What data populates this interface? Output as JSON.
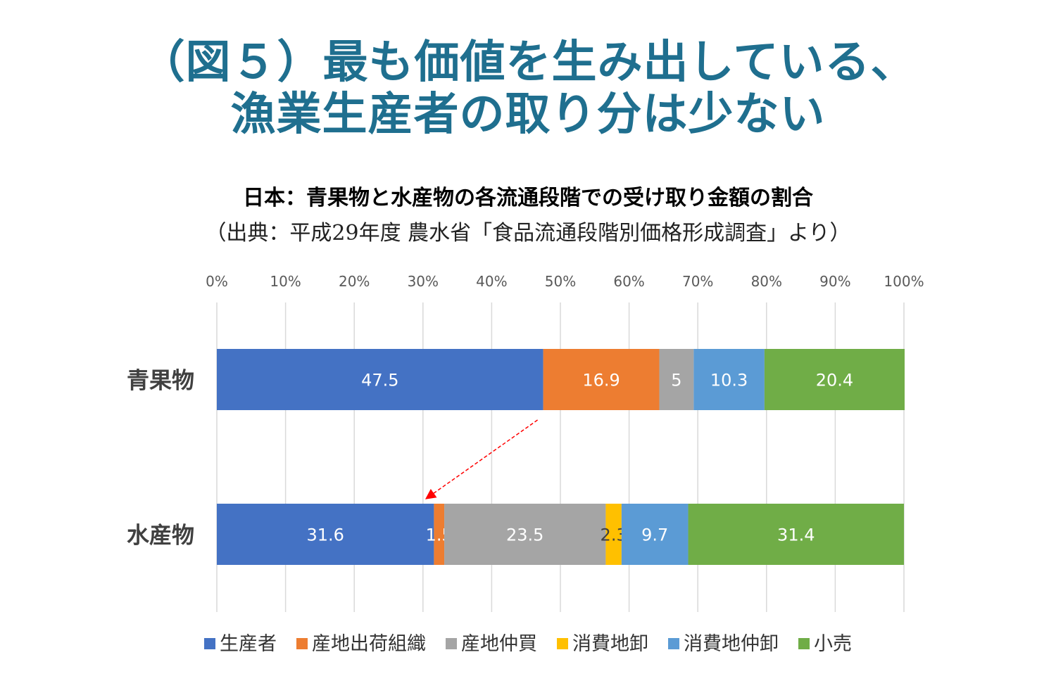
{
  "header": {
    "title_line1": "（図５）最も価値を生み出している、",
    "title_line2": "漁業生産者の取り分は少ない"
  },
  "chart_data": {
    "type": "bar",
    "orientation": "horizontal",
    "stacked": true,
    "title": "日本：青果物と水産物の各流通段階での受け取り金額の割合",
    "subtitle": "（出典：平成29年度 農水省「食品流通段階別価格形成調査」より）",
    "categories": [
      "青果物",
      "水産物"
    ],
    "series": [
      {
        "name": "生産者",
        "values": [
          47.5,
          31.6
        ],
        "labels": [
          "47.5",
          "31.6"
        ],
        "color": "#4472c4"
      },
      {
        "name": "産地出荷組織",
        "values": [
          16.9,
          1.5
        ],
        "labels": [
          "16.9",
          "1.5"
        ],
        "color": "#ed7d31"
      },
      {
        "name": "産地仲買",
        "values": [
          5,
          23.5
        ],
        "labels": [
          "5",
          "23.5"
        ],
        "color": "#a5a5a5"
      },
      {
        "name": "消費地卸",
        "values": [
          0,
          2.3
        ],
        "labels": [
          "",
          "2.3"
        ],
        "color": "#ffc000"
      },
      {
        "name": "消費地仲卸",
        "values": [
          10.3,
          9.7
        ],
        "labels": [
          "10.3",
          "9.7"
        ],
        "color": "#5b9bd5"
      },
      {
        "name": "小売",
        "values": [
          20.4,
          31.4
        ],
        "labels": [
          "20.4",
          "31.4"
        ],
        "color": "#70ad47"
      }
    ],
    "xlim": [
      0,
      100
    ],
    "x_ticks": [
      "0%",
      "10%",
      "20%",
      "30%",
      "40%",
      "50%",
      "60%",
      "70%",
      "80%",
      "90%",
      "100%"
    ],
    "grid": true,
    "legend_position": "bottom",
    "annotation": {
      "type": "arrow",
      "from_category": "青果物",
      "to_category": "水産物",
      "series": "生産者",
      "color": "#ff0000"
    }
  }
}
